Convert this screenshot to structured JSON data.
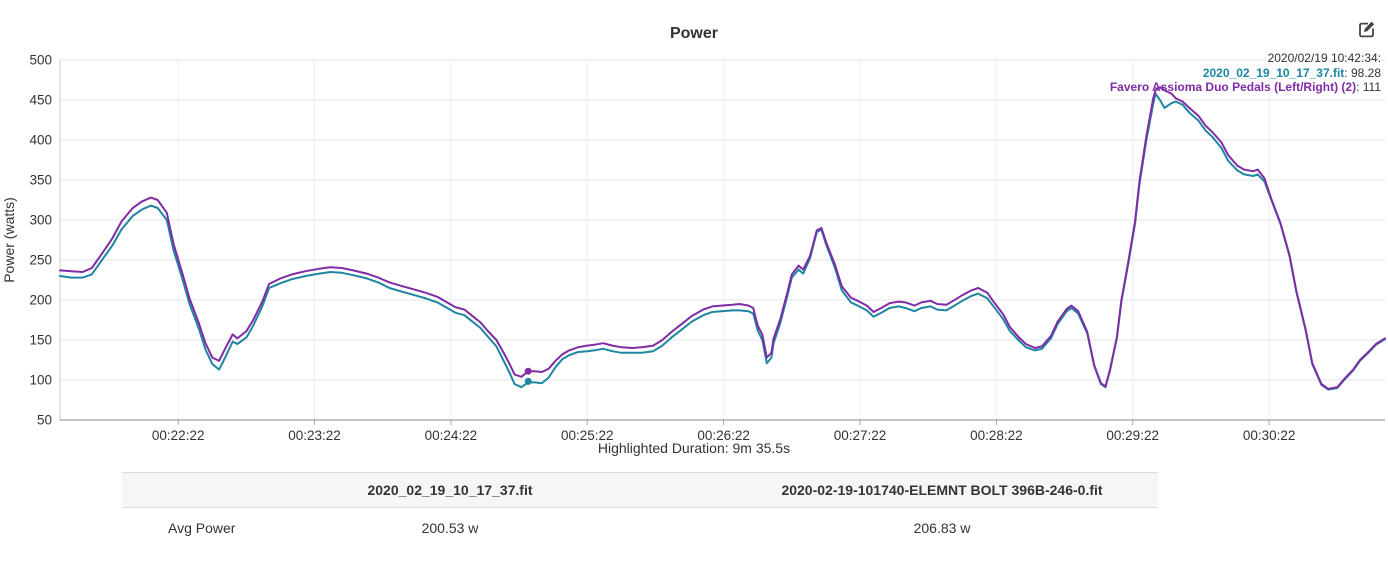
{
  "page": {
    "title": "Power"
  },
  "toolbar": {
    "edit_icon": "edit-chart"
  },
  "tooltip": {
    "timestamp": "2020/02/19 10:42:34:",
    "entries": [
      {
        "label": "2020_02_19_10_17_37.fit",
        "value": ": 98.28"
      },
      {
        "label": "Favero Assioma Duo Pedals (Left/Right) (2)",
        "value": ": 111"
      }
    ]
  },
  "footer": {
    "highlighted_duration": "Highlighted Duration: 9m 35.5s"
  },
  "table": {
    "columns": [
      "",
      "2020_02_19_10_17_37.fit",
      "2020-02-19-101740-ELEMNT BOLT 396B-246-0.fit"
    ],
    "rows": [
      {
        "metric": "Avg Power",
        "values": [
          "200.53 w",
          "206.83 w"
        ]
      }
    ]
  },
  "chart_data": {
    "type": "line",
    "title": "Power",
    "xlabel": "",
    "ylabel": "Power (watts)",
    "ylim": [
      50,
      500
    ],
    "y_ticks": [
      50,
      100,
      150,
      200,
      250,
      300,
      350,
      400,
      450,
      500
    ],
    "grid": true,
    "legend_position": "top-right-tooltip",
    "x_range_seconds": [
      0,
      583
    ],
    "x_ticks": [
      {
        "t": 52,
        "label": "00:22:22"
      },
      {
        "t": 112,
        "label": "00:23:22"
      },
      {
        "t": 172,
        "label": "00:24:22"
      },
      {
        "t": 232,
        "label": "00:25:22"
      },
      {
        "t": 292,
        "label": "00:26:22"
      },
      {
        "t": 352,
        "label": "00:27:22"
      },
      {
        "t": 412,
        "label": "00:28:22"
      },
      {
        "t": 472,
        "label": "00:29:22"
      },
      {
        "t": 532,
        "label": "00:30:22"
      }
    ],
    "x_seconds": [
      0,
      5,
      10,
      14,
      18,
      23,
      27,
      32,
      36,
      40,
      43,
      47,
      50,
      54,
      57,
      61,
      64,
      67,
      70,
      73,
      76,
      78,
      82,
      85,
      89,
      92,
      97,
      102,
      108,
      114,
      119,
      124,
      129,
      135,
      140,
      145,
      151,
      156,
      161,
      166,
      171,
      174,
      178,
      181,
      185,
      188,
      192,
      195,
      198,
      200,
      203,
      206,
      209,
      212,
      215,
      218,
      221,
      224,
      228,
      232,
      235,
      239,
      243,
      247,
      252,
      256,
      261,
      265,
      269,
      274,
      278,
      283,
      287,
      291,
      296,
      299,
      303,
      305,
      307,
      309,
      311,
      313,
      314,
      317,
      320,
      322,
      325,
      327,
      330,
      333,
      335,
      337,
      341,
      344,
      348,
      351,
      355,
      358,
      362,
      365,
      369,
      372,
      376,
      379,
      383,
      386,
      390,
      393,
      397,
      401,
      404,
      408,
      411,
      415,
      418,
      422,
      425,
      429,
      432,
      436,
      439,
      443,
      445,
      448,
      452,
      455,
      458,
      460,
      462,
      465,
      467,
      470,
      473,
      475,
      478,
      481,
      482,
      484,
      486,
      489,
      491,
      494,
      497,
      501,
      504,
      507,
      511,
      514,
      518,
      521,
      525,
      527,
      530,
      533,
      537,
      541,
      544,
      548,
      551,
      555,
      558,
      562,
      565,
      569,
      572,
      576,
      579,
      583
    ],
    "series": [
      {
        "name": "2020_02_19_10_17_37.fit",
        "color": "#1f86a1",
        "values": [
          230,
          228,
          228,
          232,
          248,
          268,
          288,
          305,
          313,
          318,
          315,
          300,
          262,
          225,
          195,
          165,
          138,
          120,
          113,
          130,
          148,
          145,
          153,
          168,
          192,
          215,
          221,
          226,
          230,
          233,
          235,
          234,
          231,
          227,
          222,
          215,
          210,
          206,
          202,
          197,
          189,
          184,
          181,
          174,
          165,
          155,
          142,
          125,
          108,
          95,
          91,
          97,
          97,
          96,
          103,
          116,
          126,
          131,
          135,
          136,
          137,
          139,
          136,
          134,
          134,
          134,
          136,
          143,
          153,
          164,
          173,
          181,
          185,
          186,
          187,
          187,
          186,
          183,
          162,
          150,
          121,
          128,
          146,
          172,
          205,
          228,
          238,
          233,
          252,
          285,
          288,
          270,
          240,
          212,
          197,
          193,
          187,
          179,
          185,
          190,
          192,
          190,
          186,
          190,
          192,
          188,
          187,
          192,
          199,
          205,
          208,
          202,
          191,
          176,
          161,
          149,
          141,
          137,
          139,
          152,
          170,
          186,
          190,
          183,
          158,
          118,
          95,
          91,
          112,
          152,
          198,
          245,
          295,
          345,
          400,
          445,
          458,
          450,
          440,
          446,
          448,
          444,
          434,
          424,
          412,
          404,
          390,
          374,
          362,
          357,
          355,
          357,
          348,
          325,
          295,
          255,
          210,
          163,
          120,
          94,
          88,
          90,
          100,
          112,
          124,
          135,
          144,
          151
        ]
      },
      {
        "name": "Favero Assioma Duo Pedals (Left/Right) (2)",
        "color": "#7f2ca5",
        "values": [
          237,
          236,
          235,
          240,
          256,
          277,
          298,
          315,
          323,
          328,
          325,
          309,
          270,
          232,
          202,
          172,
          146,
          128,
          124,
          141,
          157,
          152,
          161,
          175,
          198,
          220,
          227,
          232,
          236,
          239,
          241,
          240,
          237,
          233,
          228,
          222,
          217,
          213,
          209,
          204,
          196,
          191,
          188,
          181,
          172,
          162,
          150,
          135,
          119,
          107,
          104,
          111,
          111,
          110,
          114,
          124,
          132,
          137,
          141,
          143,
          144,
          146,
          143,
          141,
          140,
          141,
          143,
          150,
          160,
          171,
          180,
          188,
          192,
          193,
          194,
          195,
          193,
          190,
          168,
          157,
          128,
          134,
          152,
          177,
          209,
          232,
          243,
          238,
          255,
          287,
          290,
          273,
          244,
          217,
          203,
          199,
          193,
          185,
          191,
          196,
          198,
          197,
          193,
          197,
          199,
          195,
          194,
          199,
          206,
          212,
          215,
          209,
          197,
          182,
          166,
          153,
          145,
          140,
          142,
          155,
          173,
          189,
          193,
          186,
          160,
          119,
          96,
          92,
          113,
          153,
          200,
          247,
          298,
          349,
          405,
          452,
          462,
          466,
          462,
          458,
          452,
          448,
          440,
          430,
          418,
          410,
          397,
          381,
          368,
          363,
          361,
          363,
          352,
          326,
          296,
          256,
          211,
          164,
          121,
          95,
          89,
          91,
          101,
          113,
          125,
          136,
          145,
          152
        ]
      }
    ],
    "markers": [
      {
        "series": 0,
        "t": 206,
        "value": 98.28
      },
      {
        "series": 1,
        "t": 206,
        "value": 111
      }
    ]
  }
}
